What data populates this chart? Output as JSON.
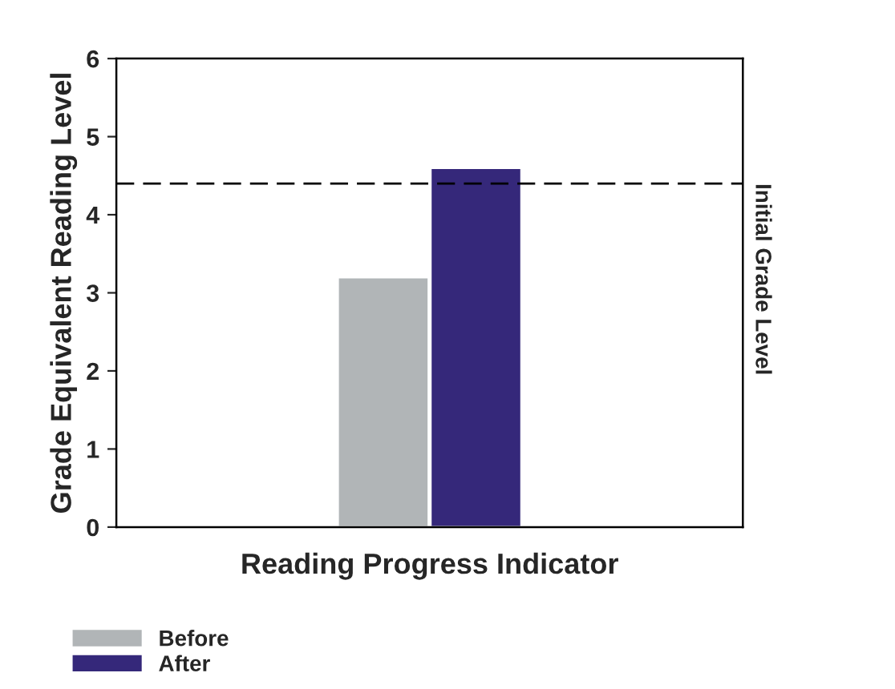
{
  "chart_data": {
    "type": "bar",
    "xlabel": "Reading Progress Indicator",
    "ylabel": "Grade Equivalent Reading Level",
    "categories": [
      null
    ],
    "series": [
      {
        "name": "Before",
        "color": "#b1b5b7",
        "values": [
          3.2
        ]
      },
      {
        "name": "After",
        "color": "#35287a",
        "values": [
          4.6
        ]
      }
    ],
    "ylim": [
      0,
      6
    ],
    "yticks": [
      0,
      1,
      2,
      3,
      4,
      5,
      6
    ],
    "grid": false,
    "legend": "bottom left",
    "ref_lines": [
      {
        "axis": "y",
        "value": 4.4,
        "label": "Initial Grade Level",
        "color": "#000000",
        "line_style": "dashed"
      }
    ]
  }
}
